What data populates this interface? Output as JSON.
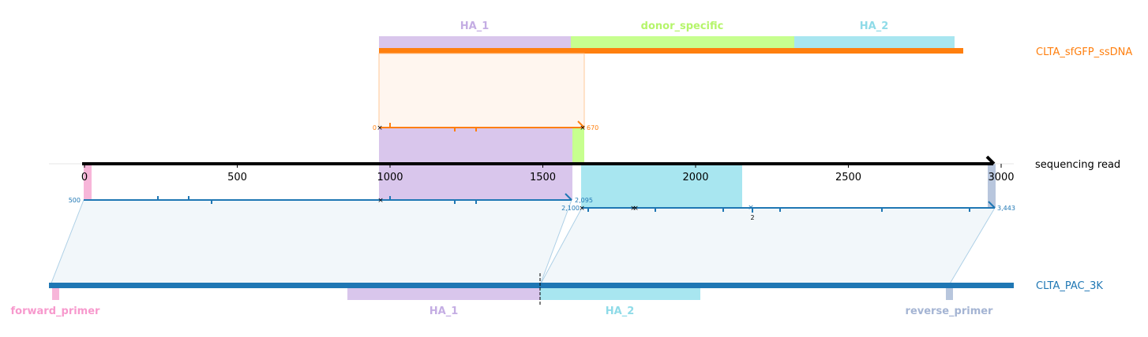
{
  "colors": {
    "ha1": "#d9c6ec",
    "donor": "#c7ff8f",
    "ha2": "#a8e6f0",
    "ha1_text": "#c4ade3",
    "donor_text": "#b5f56b",
    "ha2_text": "#8fdbe8",
    "orange": "#ff7f0e",
    "blue": "#1f77b4",
    "pink": "#f7b6d9",
    "pink_text": "#f799cd",
    "rev": "#b8c6dd",
    "rev_text": "#a4b4d3",
    "black": "#000000"
  },
  "top_features": [
    {
      "key": "ha1",
      "label": "HA_1"
    },
    {
      "key": "donor",
      "label": "donor_specific"
    },
    {
      "key": "ha2",
      "label": "HA_2"
    }
  ],
  "bottom_features": [
    {
      "key": "fwd",
      "label": "forward_primer"
    },
    {
      "key": "ha1",
      "label": "HA_1"
    },
    {
      "key": "ha2",
      "label": "HA_2"
    },
    {
      "key": "rev",
      "label": "reverse_primer"
    }
  ],
  "sequences": {
    "top": "CLTA_sfGFP_ssDNA",
    "middle": "sequencing read",
    "bottom": "CLTA_PAC_3K"
  },
  "axis": {
    "ticks": [
      0,
      500,
      1000,
      1500,
      2000,
      2500,
      3000
    ],
    "tick_labels": [
      "0",
      "500",
      "1000",
      "1500",
      "2000",
      "2500",
      "3000"
    ]
  },
  "alignment_coords": {
    "top_start": "0",
    "top_end": "670",
    "bottom1_start": "500",
    "bottom1_end": "2,095",
    "bottom2_start": "2,100",
    "bottom2_end": "3,443",
    "mismatch_count": "2"
  }
}
